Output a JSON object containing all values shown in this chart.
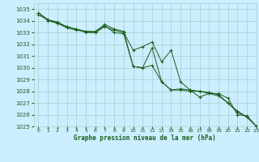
{
  "title": "Graphe pression niveau de la mer (hPa)",
  "bg_color": "#cceeff",
  "grid_color": "#aacccc",
  "line_color": "#1a5c1a",
  "xlim": [
    -0.5,
    23
  ],
  "ylim": [
    1025,
    1035.5
  ],
  "xticks": [
    0,
    1,
    2,
    3,
    4,
    5,
    6,
    7,
    8,
    9,
    10,
    11,
    12,
    13,
    14,
    15,
    16,
    17,
    18,
    19,
    20,
    21,
    22,
    23
  ],
  "yticks": [
    1025,
    1026,
    1027,
    1028,
    1029,
    1030,
    1031,
    1032,
    1033,
    1034,
    1035
  ],
  "series1": {
    "x": [
      0,
      1,
      2,
      3,
      4,
      5,
      6,
      7,
      8,
      9,
      10,
      11,
      12,
      13,
      14,
      15,
      16,
      17,
      18,
      19,
      20,
      21,
      22,
      23
    ],
    "y": [
      1034.5,
      1034.1,
      1033.9,
      1033.5,
      1033.3,
      1033.0,
      1033.0,
      1033.5,
      1033.2,
      1033.0,
      1031.5,
      1031.8,
      1032.2,
      1030.5,
      1031.5,
      1028.8,
      1028.1,
      1027.5,
      1027.8,
      1027.8,
      1027.4,
      1026.0,
      1025.9,
      1025.0
    ]
  },
  "series2": {
    "x": [
      0,
      1,
      2,
      3,
      4,
      5,
      6,
      7,
      8,
      9,
      10,
      11,
      12,
      13,
      14,
      15,
      16,
      17,
      18,
      19,
      20,
      21,
      22,
      23
    ],
    "y": [
      1034.7,
      1034.1,
      1033.8,
      1033.4,
      1033.2,
      1033.1,
      1033.1,
      1033.7,
      1033.3,
      1033.1,
      1030.1,
      1030.0,
      1030.2,
      1028.8,
      1028.1,
      1028.2,
      1028.1,
      1028.0,
      1027.9,
      1027.7,
      1027.0,
      1026.3,
      1025.8,
      1025.0
    ]
  },
  "series3": {
    "x": [
      0,
      1,
      2,
      3,
      4,
      5,
      6,
      7,
      8,
      9,
      10,
      11,
      12,
      13,
      14,
      15,
      16,
      17,
      18,
      19,
      20,
      21,
      22,
      23
    ],
    "y": [
      1034.7,
      1034.0,
      1033.8,
      1033.5,
      1033.3,
      1033.1,
      1033.0,
      1033.6,
      1033.0,
      1032.9,
      1030.1,
      1030.0,
      1031.7,
      1028.8,
      1028.1,
      1028.1,
      1028.0,
      1028.0,
      1027.8,
      1027.6,
      1027.0,
      1026.2,
      1025.8,
      1025.0
    ]
  }
}
